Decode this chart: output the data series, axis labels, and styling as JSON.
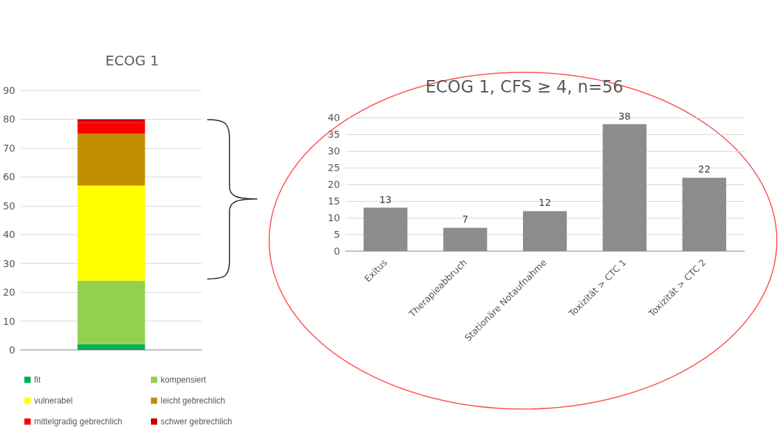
{
  "chart_data": [
    {
      "type": "bar",
      "title": "ECOG 1",
      "categories": [
        null
      ],
      "stacked": true,
      "ylim": [
        0,
        90
      ],
      "yticks": [
        0,
        10,
        20,
        30,
        40,
        50,
        60,
        70,
        80,
        90
      ],
      "grid": "y",
      "legend": "bottom",
      "series": [
        {
          "name": "fit",
          "color": "#00b050",
          "values": [
            2
          ]
        },
        {
          "name": "kompensiert",
          "color": "#92d050",
          "values": [
            22
          ]
        },
        {
          "name": "vulnerabel",
          "color": "#ffff00",
          "values": [
            33
          ]
        },
        {
          "name": "leicht gebrechlich",
          "color": "#bf8f00",
          "values": [
            18
          ]
        },
        {
          "name": "mittelgradig gebrechlich",
          "color": "#ff0000",
          "values": [
            4
          ]
        },
        {
          "name": "schwer gebrechlich",
          "color": "#c00000",
          "values": [
            1
          ]
        }
      ]
    },
    {
      "type": "bar",
      "title": "ECOG 1, CFS ≥ 4, n=56",
      "categories": [
        "Exitus",
        "Therapieabbruch",
        "Stationäre Notaufnahme",
        "Toxizität > CTC 1",
        "Toxizität > CTC 2"
      ],
      "values": [
        13,
        7,
        12,
        38,
        22
      ],
      "color": "#8c8c8c",
      "data_labels": true,
      "ylim": [
        0,
        40
      ],
      "yticks": [
        0,
        5,
        10,
        15,
        20,
        25,
        30,
        35,
        40
      ],
      "grid": "y"
    }
  ]
}
